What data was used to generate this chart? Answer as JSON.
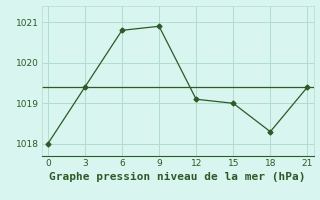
{
  "x": [
    0,
    3,
    6,
    9,
    12,
    15,
    18,
    21
  ],
  "y": [
    1018.0,
    1019.4,
    1020.8,
    1020.9,
    1019.1,
    1019.0,
    1018.3,
    1019.4
  ],
  "hline": 1019.4,
  "line_color": "#2d5a27",
  "bg_color": "#d8f5ef",
  "grid_color": "#b0ddd0",
  "xlabel": "Graphe pression niveau de la mer (hPa)",
  "xlim": [
    -0.5,
    21.5
  ],
  "ylim": [
    1017.7,
    1021.4
  ],
  "yticks": [
    1018,
    1019,
    1020,
    1021
  ],
  "xticks": [
    0,
    3,
    6,
    9,
    12,
    15,
    18,
    21
  ],
  "tick_fontsize": 6.5,
  "xlabel_fontsize": 8,
  "marker": "D",
  "marker_size": 2.5
}
